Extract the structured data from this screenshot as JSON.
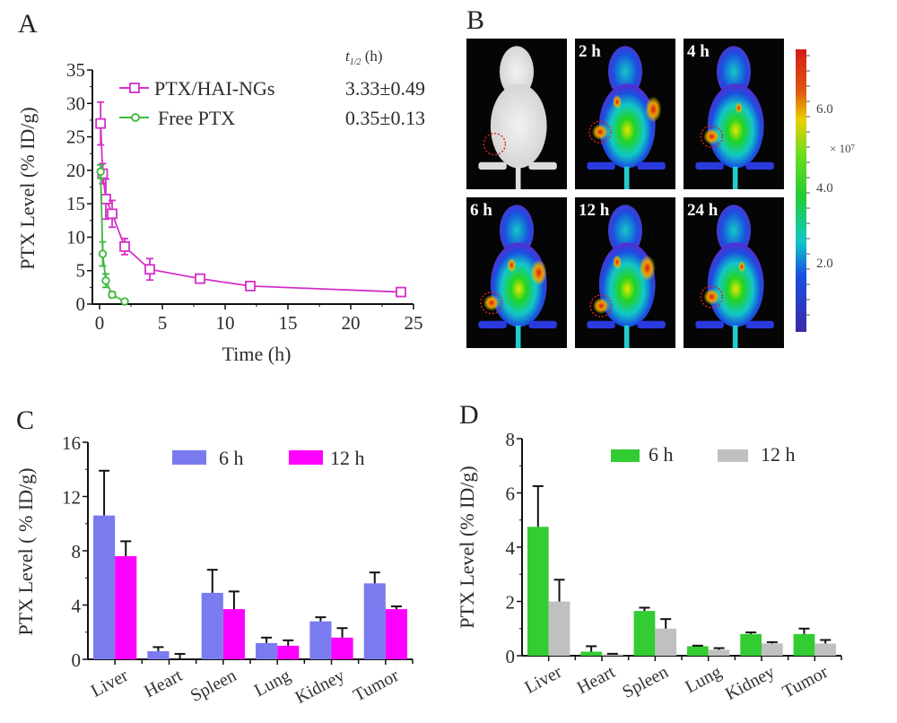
{
  "figure": {
    "panels": [
      "A",
      "B",
      "C",
      "D"
    ]
  },
  "chart_data": [
    {
      "id": "A",
      "type": "line",
      "title": "",
      "xlabel": "Time (h)",
      "ylabel": "PTX Level (% ID/g)",
      "xlim": [
        0,
        25
      ],
      "ylim": [
        0,
        35
      ],
      "xticks": [
        0,
        5,
        10,
        15,
        20,
        25
      ],
      "yticks": [
        0,
        5,
        10,
        15,
        20,
        25,
        30,
        35
      ],
      "grid": false,
      "legend_position": "top-right",
      "legend_header": "t1/2 (h)",
      "series": [
        {
          "name": "PTX/HAI-NGs",
          "half_life": "3.33±0.49",
          "color": "#d42fc9",
          "marker": "square",
          "x": [
            0.083,
            0.25,
            0.5,
            1,
            2,
            4,
            8,
            12,
            24
          ],
          "y": [
            27,
            19.5,
            15.7,
            13.5,
            8.6,
            5.2,
            3.8,
            2.7,
            1.8
          ],
          "err": [
            3.2,
            1.5,
            3.0,
            2.0,
            1.2,
            1.6,
            0.4,
            0.4,
            0.4
          ]
        },
        {
          "name": "Free PTX",
          "half_life": "0.35±0.13",
          "color": "#3cb83c",
          "marker": "circle",
          "x": [
            0.083,
            0.25,
            0.5,
            1,
            2
          ],
          "y": [
            19.8,
            7.5,
            3.5,
            1.4,
            0.4
          ],
          "err": [
            1.0,
            1.8,
            1.0,
            0.4,
            0.2
          ]
        }
      ]
    },
    {
      "id": "B",
      "type": "heatmap",
      "description": "In vivo fluorescence images of tumor-bearing mice",
      "images": [
        {
          "label": ""
        },
        {
          "label": "2 h"
        },
        {
          "label": "4 h"
        },
        {
          "label": "6 h"
        },
        {
          "label": "12 h"
        },
        {
          "label": "24 h"
        }
      ],
      "colorbar": {
        "ticks": [
          "6.0",
          "4.0",
          "2.0"
        ],
        "multiplier": "× 10⁷",
        "colors": [
          "#d41a1a",
          "#f0a000",
          "#e8e800",
          "#22d322",
          "#11c8c8",
          "#1a4fe0",
          "#3a2aa8"
        ]
      }
    },
    {
      "id": "C",
      "type": "bar",
      "xlabel": "",
      "ylabel": "PTX Level ( % ID/g)",
      "ylim": [
        0,
        16
      ],
      "yticks": [
        0,
        4,
        8,
        12,
        16
      ],
      "grid": false,
      "legend_position": "top",
      "categories": [
        "Liver",
        "Heart",
        "Spleen",
        "Lung",
        "Kidney",
        "Tumor"
      ],
      "series": [
        {
          "name": "6 h",
          "color": "#7b7bf0",
          "values": [
            10.6,
            0.6,
            4.9,
            1.2,
            2.8,
            5.6
          ],
          "err": [
            3.3,
            0.3,
            1.7,
            0.4,
            0.3,
            0.8
          ]
        },
        {
          "name": "12 h",
          "color": "#ff00ff",
          "values": [
            7.6,
            0.0,
            3.7,
            1.0,
            1.6,
            3.7
          ],
          "err": [
            1.1,
            0.4,
            1.3,
            0.4,
            0.7,
            0.2
          ]
        }
      ]
    },
    {
      "id": "D",
      "type": "bar",
      "xlabel": "",
      "ylabel": "PTX Level (% ID/g)",
      "ylim": [
        0,
        8
      ],
      "yticks": [
        0,
        2,
        4,
        6,
        8
      ],
      "grid": false,
      "legend_position": "top",
      "categories": [
        "Liver",
        "Heart",
        "Spleen",
        "Lung",
        "Kidney",
        "Tumor"
      ],
      "series": [
        {
          "name": "6 h",
          "color": "#33cc33",
          "values": [
            4.75,
            0.15,
            1.65,
            0.35,
            0.8,
            0.8
          ],
          "err": [
            1.5,
            0.2,
            0.12,
            0.02,
            0.06,
            0.2
          ]
        },
        {
          "name": "12 h",
          "color": "#c0c0c0",
          "values": [
            2.0,
            0.05,
            1.0,
            0.22,
            0.45,
            0.45
          ],
          "err": [
            0.8,
            0.02,
            0.35,
            0.06,
            0.05,
            0.13
          ]
        }
      ]
    }
  ]
}
